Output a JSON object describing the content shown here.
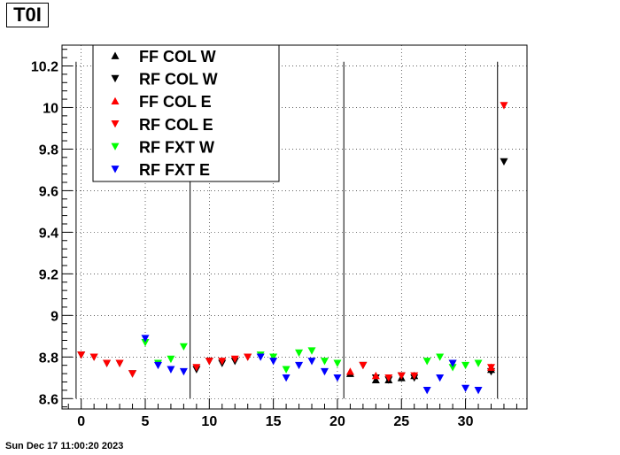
{
  "title": "T0I",
  "timestamp": "Sun Dec 17 11:00:20 2023",
  "chart_data": {
    "type": "scatter",
    "title": "T0I",
    "xlabel": "",
    "ylabel": "",
    "xlim": [
      -1.5,
      34.8
    ],
    "ylim": [
      8.55,
      10.3
    ],
    "grid": true,
    "legend_position": "top-left",
    "x_ticks": [
      0,
      5,
      10,
      15,
      20,
      25,
      30
    ],
    "y_ticks": [
      8.6,
      8.8,
      9,
      9.2,
      9.4,
      9.6,
      9.8,
      10,
      10.2
    ],
    "x_tick_labels": [
      "0",
      "5",
      "10",
      "15",
      "20",
      "25",
      "30"
    ],
    "y_tick_labels": [
      "8.6",
      "8.8",
      "9",
      "9.2",
      "9.4",
      "9.6",
      "9.8",
      "10",
      "10.2"
    ],
    "vertical_lines": [
      {
        "x": -0.4,
        "y_from": 8.6,
        "y_to": 10.22
      },
      {
        "x": 8.5,
        "y_from": 8.6,
        "y_to": 10.22
      },
      {
        "x": 20.5,
        "y_from": 8.6,
        "y_to": 10.22
      },
      {
        "x": 32.5,
        "y_from": 8.6,
        "y_to": 10.22
      }
    ],
    "series": [
      {
        "name": "FF COL W",
        "marker": "up",
        "color": "#000000",
        "points": [
          [
            21,
            8.72
          ],
          [
            23,
            8.69
          ],
          [
            24,
            8.69
          ],
          [
            25,
            8.7
          ],
          [
            26,
            8.71
          ],
          [
            32,
            8.74
          ]
        ]
      },
      {
        "name": "RF COL W",
        "marker": "down",
        "color": "#000000",
        "points": [
          [
            0,
            8.81
          ],
          [
            1,
            8.8
          ],
          [
            2,
            8.77
          ],
          [
            3,
            8.77
          ],
          [
            4,
            8.72
          ],
          [
            9,
            8.74
          ],
          [
            10,
            8.78
          ],
          [
            11,
            8.77
          ],
          [
            12,
            8.78
          ],
          [
            13,
            8.8
          ],
          [
            22,
            8.76
          ],
          [
            23,
            8.7
          ],
          [
            24,
            8.69
          ],
          [
            25,
            8.71
          ],
          [
            26,
            8.7
          ],
          [
            29,
            8.77
          ],
          [
            32,
            8.73
          ],
          [
            33,
            9.74
          ]
        ]
      },
      {
        "name": "FF COL E",
        "marker": "up",
        "color": "#ff0000",
        "points": [
          [
            21,
            8.73
          ],
          [
            23,
            8.71
          ],
          [
            32,
            8.75
          ]
        ]
      },
      {
        "name": "RF COL E",
        "marker": "down",
        "color": "#ff0000",
        "points": [
          [
            0,
            8.81
          ],
          [
            1,
            8.8
          ],
          [
            2,
            8.77
          ],
          [
            3,
            8.77
          ],
          [
            4,
            8.72
          ],
          [
            9,
            8.75
          ],
          [
            10,
            8.78
          ],
          [
            11,
            8.78
          ],
          [
            12,
            8.79
          ],
          [
            13,
            8.8
          ],
          [
            22,
            8.76
          ],
          [
            24,
            8.7
          ],
          [
            25,
            8.71
          ],
          [
            26,
            8.71
          ],
          [
            32,
            8.75
          ],
          [
            33,
            10.01
          ]
        ]
      },
      {
        "name": "RF FXT W",
        "marker": "down",
        "color": "#00ff00",
        "points": [
          [
            5,
            8.87
          ],
          [
            6,
            8.77
          ],
          [
            7,
            8.79
          ],
          [
            8,
            8.85
          ],
          [
            14,
            8.81
          ],
          [
            15,
            8.8
          ],
          [
            16,
            8.74
          ],
          [
            17,
            8.82
          ],
          [
            18,
            8.83
          ],
          [
            19,
            8.78
          ],
          [
            20,
            8.77
          ],
          [
            27,
            8.78
          ],
          [
            28,
            8.8
          ],
          [
            29,
            8.75
          ],
          [
            30,
            8.76
          ],
          [
            31,
            8.77
          ]
        ]
      },
      {
        "name": "RF FXT E",
        "marker": "down",
        "color": "#0000ff",
        "points": [
          [
            5,
            8.89
          ],
          [
            6,
            8.76
          ],
          [
            7,
            8.74
          ],
          [
            8,
            8.73
          ],
          [
            14,
            8.8
          ],
          [
            15,
            8.78
          ],
          [
            16,
            8.7
          ],
          [
            17,
            8.76
          ],
          [
            18,
            8.78
          ],
          [
            19,
            8.73
          ],
          [
            20,
            8.7
          ],
          [
            27,
            8.64
          ],
          [
            28,
            8.7
          ],
          [
            29,
            8.77
          ],
          [
            30,
            8.65
          ],
          [
            31,
            8.64
          ]
        ]
      }
    ]
  }
}
